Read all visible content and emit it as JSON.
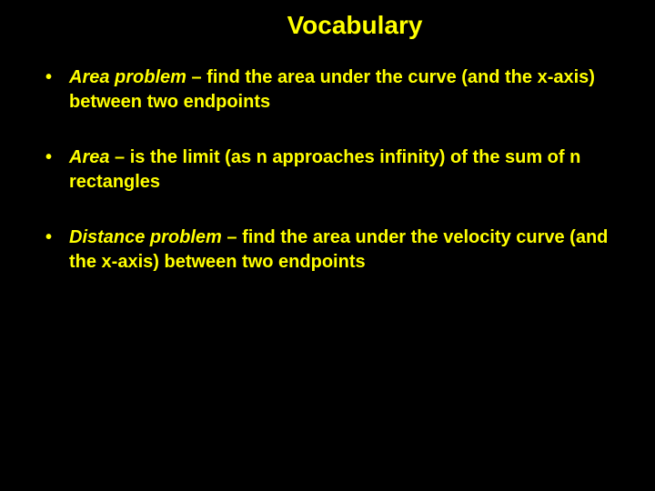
{
  "slide": {
    "title": "Vocabulary",
    "background_color": "#000000",
    "text_color": "#ffff00",
    "title_fontsize": 28,
    "body_fontsize": 20,
    "font_family": "Arial",
    "bullets": [
      {
        "term": "Area problem",
        "definition": " – find the area under the curve (and the x-axis) between two endpoints"
      },
      {
        "term": "Area",
        "definition": " – is the limit (as n approaches infinity) of the sum of n rectangles"
      },
      {
        "term": "Distance problem",
        "definition": " – find the area under the velocity curve (and the x-axis) between two endpoints"
      }
    ]
  }
}
